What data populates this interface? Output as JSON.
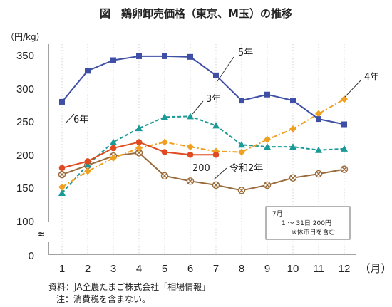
{
  "chart_data": {
    "type": "line",
    "title": "図　鶏卵卸売価格（東京、M玉）の推移",
    "ylabel": "（円/kg）",
    "xlabel": "（月）",
    "categories": [
      "1",
      "2",
      "3",
      "4",
      "5",
      "6",
      "7",
      "8",
      "9",
      "10",
      "11",
      "12"
    ],
    "y_ticks": [
      "350",
      "300",
      "250",
      "200",
      "150",
      "100",
      "0"
    ],
    "axis_break": "≈",
    "ylim": [
      100,
      360
    ],
    "grid": true,
    "series": [
      {
        "name": "5年",
        "color": "#3f4fa6",
        "marker": "square",
        "dash": "solid",
        "values": [
          280,
          327,
          343,
          349,
          349,
          348,
          320,
          282,
          291,
          282,
          254,
          246
        ]
      },
      {
        "name": "4年",
        "color": "#f0a020",
        "marker": "diamond",
        "dash": "dashdot",
        "values": [
          151,
          175,
          195,
          210,
          219,
          212,
          205,
          204,
          223,
          239,
          262,
          284
        ]
      },
      {
        "name": "3年",
        "color": "#1a9a96",
        "marker": "triangle",
        "dash": "dashed",
        "values": [
          142,
          185,
          219,
          240,
          257,
          258,
          244,
          215,
          212,
          212,
          207,
          209
        ]
      },
      {
        "name": "6年",
        "color": "#e04a20",
        "marker": "circle",
        "dash": "solid",
        "values": [
          180,
          190,
          210,
          219,
          204,
          200,
          200,
          null,
          null,
          null,
          null,
          null
        ]
      },
      {
        "name": "令和2年",
        "color": "#9a6a3a",
        "marker": "cross",
        "dash": "solid",
        "values": [
          170,
          184,
          198,
          203,
          168,
          160,
          154,
          146,
          154,
          165,
          171,
          178
        ]
      }
    ],
    "annotations": {
      "value_label": "200",
      "note_lines": [
        "7月",
        "1 ～ 31日 200円",
        "※休市日を含む"
      ]
    },
    "source_lines": [
      "資料：JA全農たまご株式会社「相場情報」",
      "注：消費税を含まない。"
    ]
  }
}
